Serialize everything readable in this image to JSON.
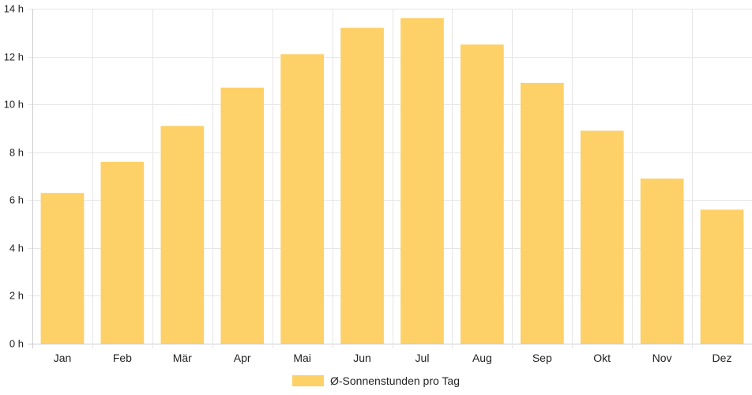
{
  "chart_data": {
    "type": "bar",
    "categories": [
      "Jan",
      "Feb",
      "Mär",
      "Apr",
      "Mai",
      "Jun",
      "Jul",
      "Aug",
      "Sep",
      "Okt",
      "Nov",
      "Dez"
    ],
    "series": [
      {
        "name": "Ø-Sonnenstunden pro Tag",
        "values": [
          6.3,
          7.6,
          9.1,
          10.7,
          12.1,
          13.2,
          13.6,
          12.5,
          10.9,
          8.9,
          6.9,
          5.6
        ]
      }
    ],
    "ylim": [
      0,
      14
    ],
    "yticks": [
      0,
      2,
      4,
      6,
      8,
      10,
      12,
      14
    ],
    "ytick_labels": [
      "0 h",
      "2 h",
      "4 h",
      "6 h",
      "8 h",
      "10 h",
      "12 h",
      "14 h"
    ],
    "grid": true,
    "legend_position": "bottom",
    "colors": {
      "bar": "#fdd068",
      "grid": "#e6e6e6",
      "axis": "#cccccc",
      "text": "#222222"
    }
  }
}
